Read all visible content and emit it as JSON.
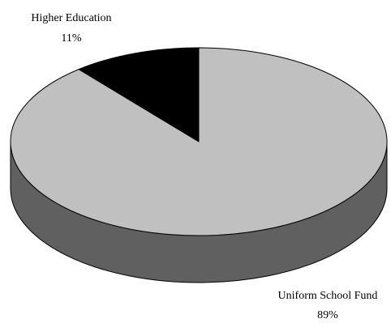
{
  "chart_data": {
    "type": "pie",
    "style": "3d",
    "categories": [
      "Higher Education",
      "Uniform School Fund"
    ],
    "values": [
      11,
      89
    ],
    "unit": "%",
    "slices": [
      {
        "name": "Higher Education",
        "value": 11,
        "label": "11%",
        "color": "#000000"
      },
      {
        "name": "Uniform School Fund",
        "value": 89,
        "label": "89%",
        "color": "#c0c0c0"
      }
    ],
    "side_color": "#606060",
    "outline_color": "#000000",
    "legend": "none"
  }
}
